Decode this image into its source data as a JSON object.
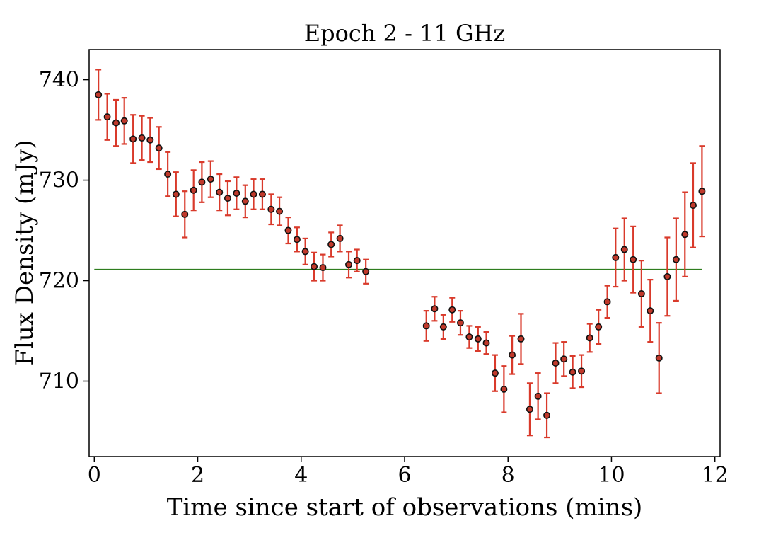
{
  "chart_data": {
    "type": "scatter",
    "title": "Epoch 2 - 11 GHz",
    "xlabel": "Time since start of observations (mins)",
    "ylabel": "Flux Density (mJy)",
    "xlim": [
      -0.1,
      12.1
    ],
    "ylim": [
      702.5,
      743.0
    ],
    "xticks": [
      0,
      2,
      4,
      6,
      8,
      10,
      12
    ],
    "yticks": [
      710,
      720,
      730,
      740
    ],
    "grid": false,
    "legend": "none",
    "colors": {
      "point_fill": "#c0392b",
      "point_edge": "#111111",
      "errorbar": "#d93a2b",
      "reference_line": "#2e7d1e"
    },
    "reference_line": {
      "y": 721.1,
      "x_range": [
        0.0,
        11.75
      ]
    },
    "series": [
      {
        "x": [
          0.08,
          0.25,
          0.42,
          0.58,
          0.75,
          0.92,
          1.08,
          1.25,
          1.42,
          1.58,
          1.75,
          1.92,
          2.08,
          2.25,
          2.42,
          2.58,
          2.75,
          2.92,
          3.08,
          3.25,
          3.42,
          3.58,
          3.75,
          3.92,
          4.08,
          4.25,
          4.42,
          4.58,
          4.75,
          4.92,
          5.08,
          5.25,
          6.42,
          6.58,
          6.75,
          6.92,
          7.08,
          7.25,
          7.42,
          7.58,
          7.75,
          7.92,
          8.08,
          8.25,
          8.42,
          8.58,
          8.75,
          8.92,
          9.08,
          9.25,
          9.42,
          9.58,
          9.75,
          9.92,
          10.08,
          10.25,
          10.42,
          10.58,
          10.75,
          10.92,
          11.08,
          11.25,
          11.42,
          11.58,
          11.75
        ],
        "y": [
          738.5,
          736.3,
          735.7,
          735.9,
          734.1,
          734.2,
          734.0,
          733.2,
          730.6,
          728.6,
          726.6,
          729.0,
          729.8,
          730.1,
          728.8,
          728.2,
          728.7,
          727.9,
          728.6,
          728.6,
          727.1,
          726.9,
          725.0,
          724.1,
          722.9,
          721.4,
          721.3,
          723.6,
          724.2,
          721.6,
          722.0,
          720.9,
          715.5,
          717.2,
          715.4,
          717.1,
          715.8,
          714.4,
          714.2,
          713.8,
          710.8,
          709.2,
          712.6,
          714.2,
          707.2,
          708.5,
          706.6,
          711.8,
          712.2,
          710.9,
          711.0,
          714.3,
          715.4,
          717.9,
          722.3,
          723.1,
          722.1,
          718.7,
          717.0,
          712.3,
          720.4,
          722.1,
          724.6,
          727.5,
          728.9
        ],
        "err": [
          2.5,
          2.3,
          2.3,
          2.3,
          2.4,
          2.2,
          2.2,
          2.1,
          2.2,
          2.2,
          2.3,
          2.0,
          2.0,
          1.8,
          1.8,
          1.7,
          1.6,
          1.6,
          1.5,
          1.5,
          1.5,
          1.4,
          1.3,
          1.2,
          1.3,
          1.4,
          1.3,
          1.2,
          1.3,
          1.3,
          1.1,
          1.2,
          1.5,
          1.2,
          1.2,
          1.2,
          1.2,
          1.1,
          1.2,
          1.1,
          1.8,
          2.3,
          1.9,
          2.5,
          2.6,
          2.3,
          2.2,
          2.0,
          1.7,
          1.6,
          1.6,
          1.4,
          1.7,
          1.6,
          2.9,
          3.1,
          3.3,
          3.3,
          3.1,
          3.5,
          3.9,
          4.1,
          4.2,
          4.2,
          4.5
        ]
      }
    ]
  }
}
